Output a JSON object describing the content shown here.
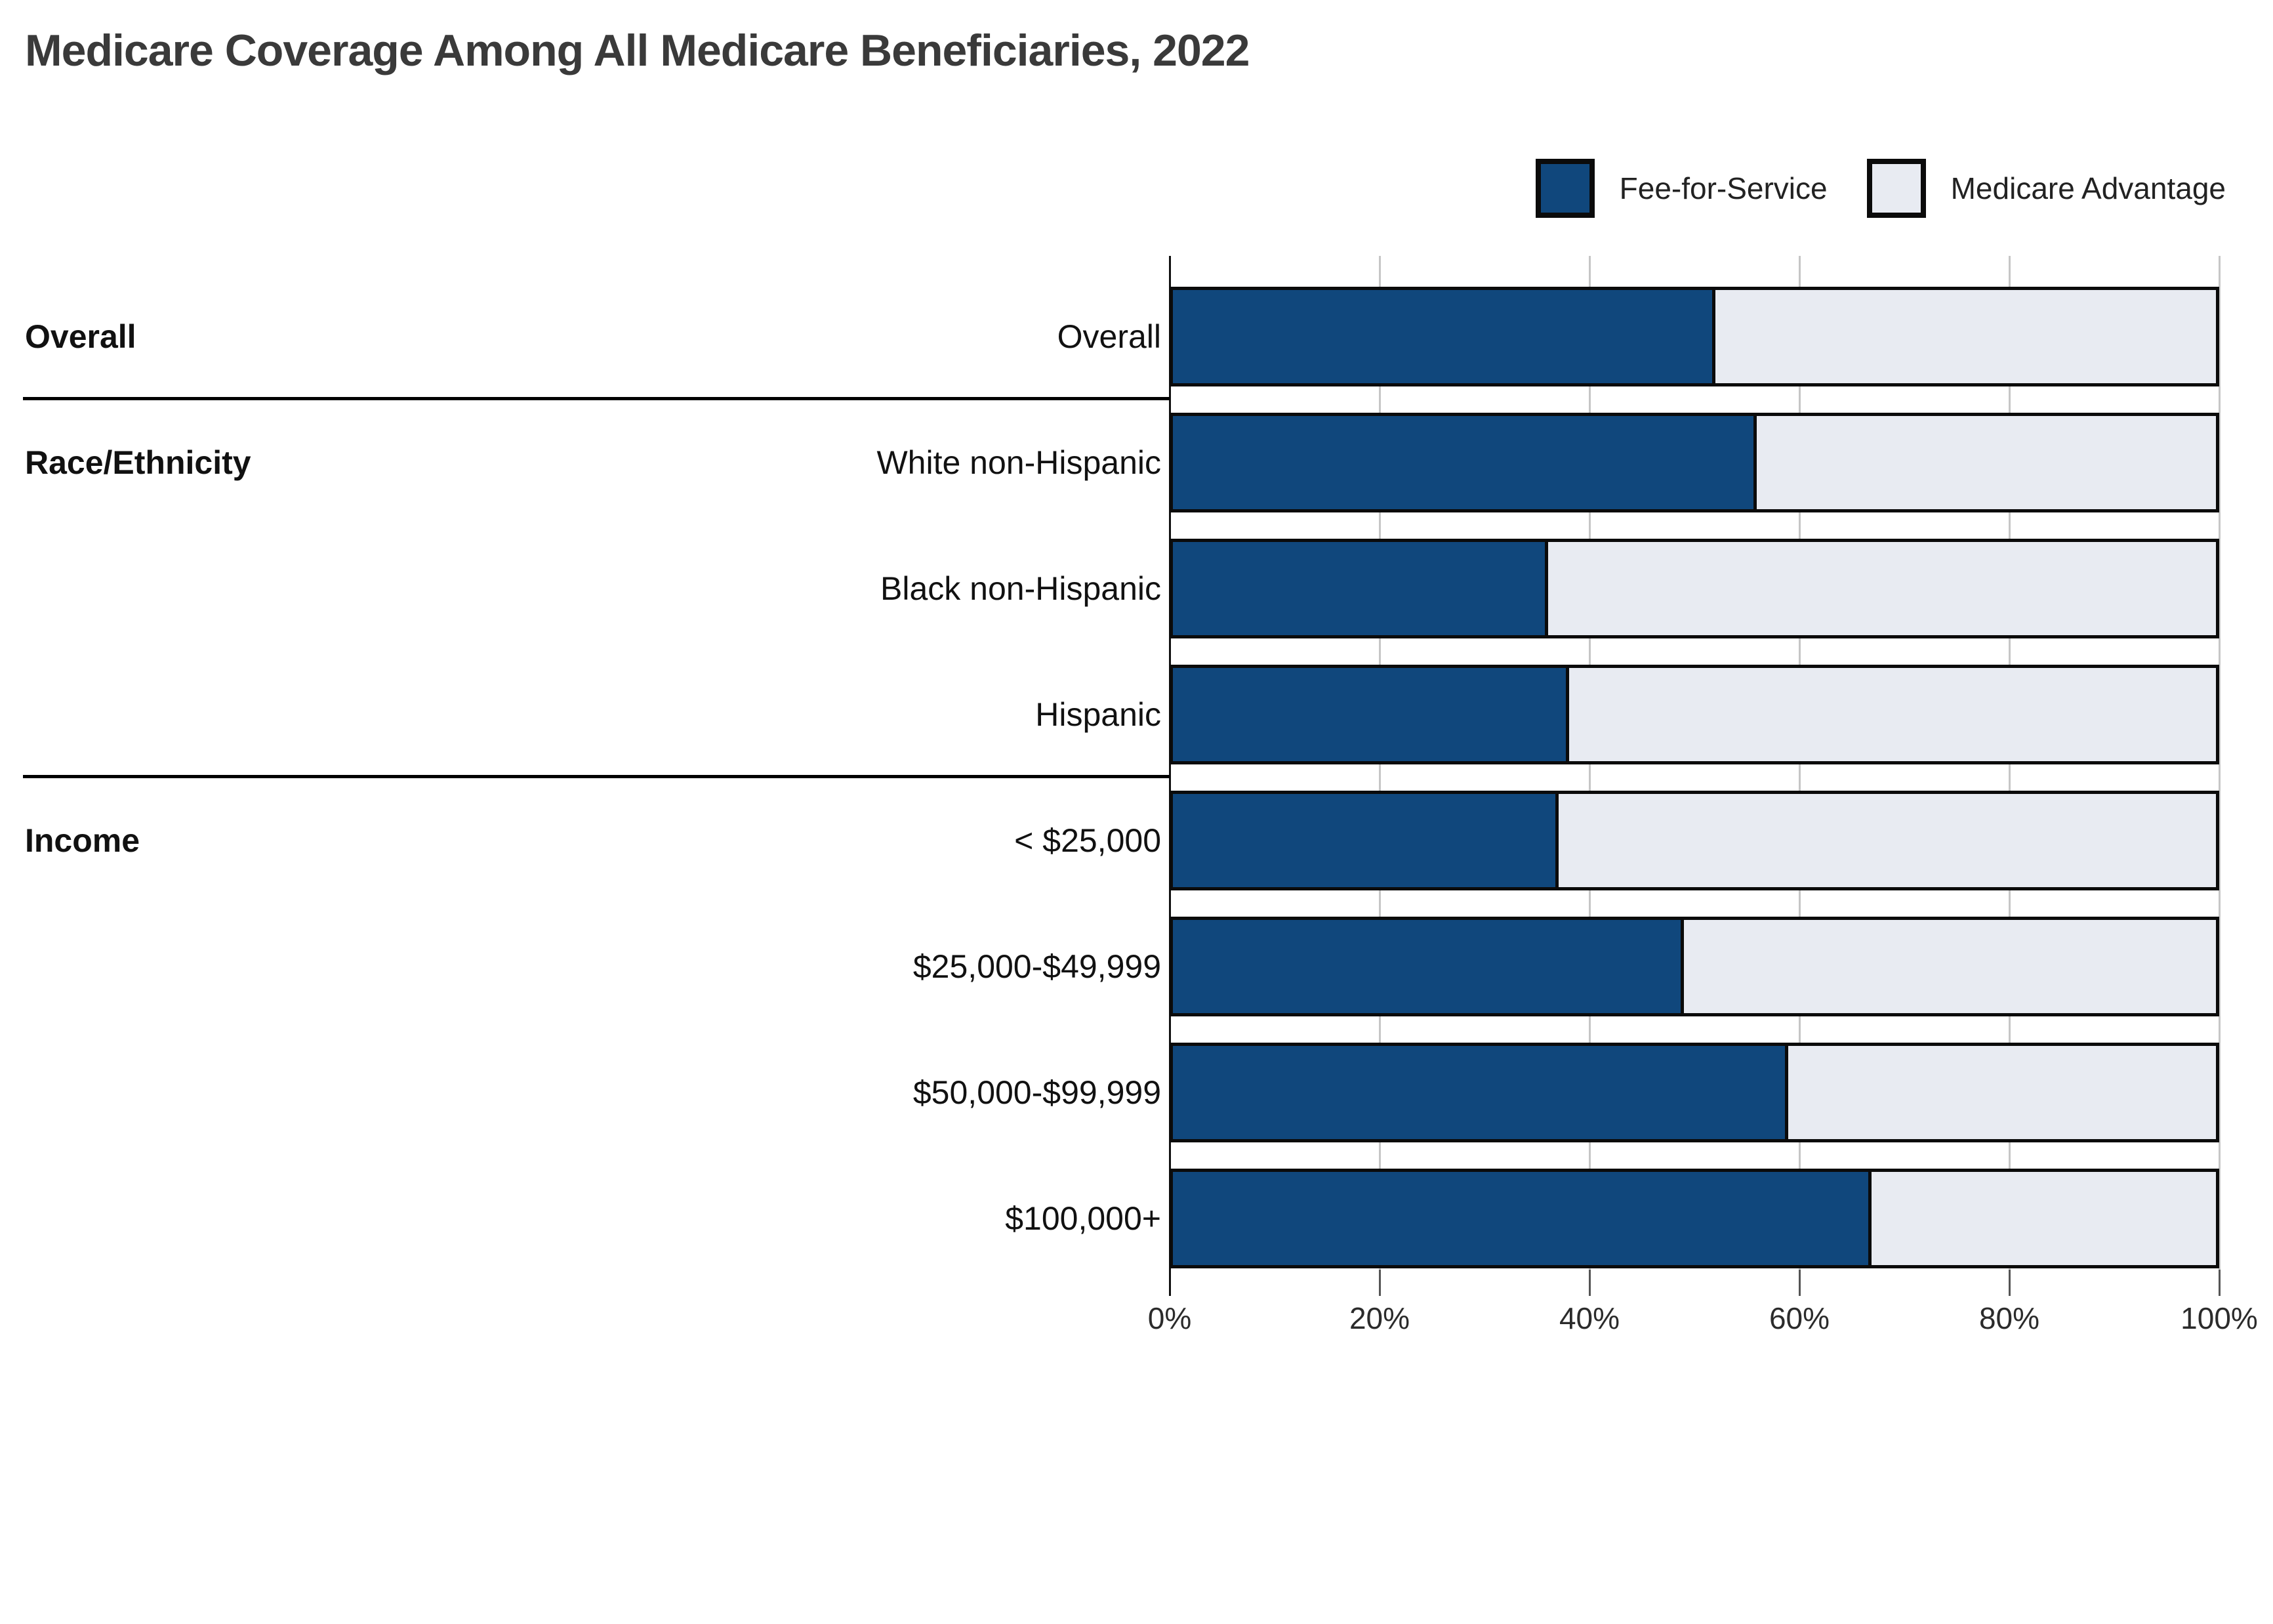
{
  "title": "Medicare Coverage Among All Medicare Beneficiaries, 2022",
  "legend": {
    "items": [
      {
        "label": "Fee-for-Service",
        "color": "#10477c"
      },
      {
        "label": "Medicare Advantage",
        "color": "#e8ebf2"
      }
    ]
  },
  "colors": {
    "fee_for_service": "#10477c",
    "medicare_advantage": "#e8ebf2",
    "bar_border": "#0b0b0b",
    "gridline": "#c6c6c6",
    "title_text": "#3a3a3a",
    "label_text": "#111111"
  },
  "chart_data": {
    "type": "bar",
    "orientation": "horizontal",
    "stacked": true,
    "title": "Medicare Coverage Among All Medicare Beneficiaries, 2022",
    "categories": [
      "Overall",
      "White non-Hispanic",
      "Black non-Hispanic",
      "Hispanic",
      "< $25,000",
      "$25,000-$49,999",
      "$50,000-$99,999",
      "$100,000+"
    ],
    "series": [
      {
        "name": "Fee-for-Service",
        "color": "#10477c",
        "values": [
          52,
          56,
          36,
          38,
          37,
          49,
          59,
          67
        ]
      },
      {
        "name": "Medicare Advantage",
        "color": "#e8ebf2",
        "values": [
          48,
          44,
          64,
          62,
          63,
          51,
          41,
          33
        ]
      }
    ],
    "row_groups": [
      {
        "label": "Overall",
        "start": 0,
        "count": 1
      },
      {
        "label": "Race/Ethnicity",
        "start": 1,
        "count": 3
      },
      {
        "label": "Income",
        "start": 4,
        "count": 4
      }
    ],
    "x_ticks": [
      "0%",
      "20%",
      "40%",
      "60%",
      "80%",
      "100%"
    ],
    "xlim": [
      0,
      100
    ],
    "grid": true,
    "legend_position": "top-right",
    "unit": "percent of beneficiaries"
  }
}
